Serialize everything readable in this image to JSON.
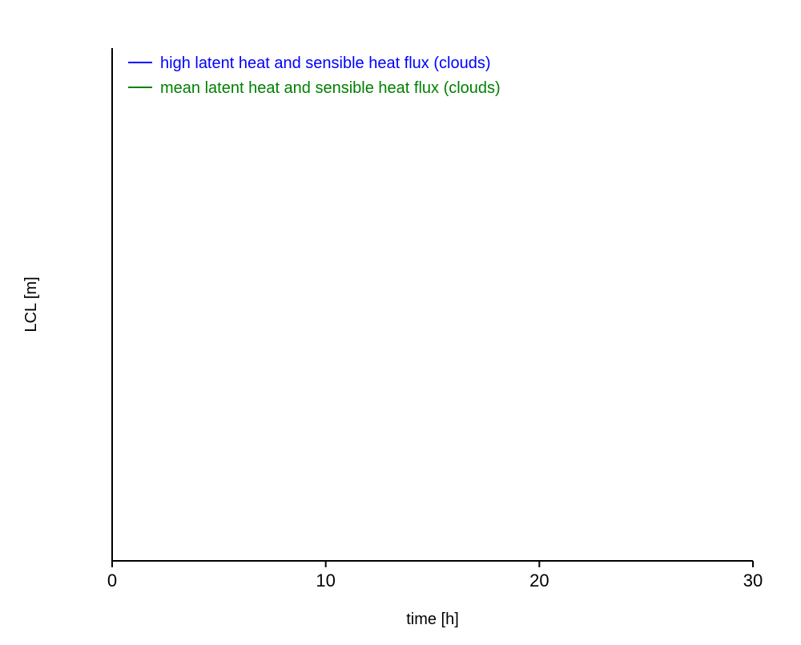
{
  "chart_data": {
    "type": "line",
    "title": "",
    "xlabel": "time [h]",
    "ylabel": "LCL [m]",
    "xlim": [
      0,
      30
    ],
    "xticks": [
      0,
      10,
      20,
      30
    ],
    "grid": false,
    "legend_position": "top-left",
    "series": [
      {
        "name": "high latent heat and sensible heat flux (clouds)",
        "color": "#0000ff",
        "x": [],
        "y": []
      },
      {
        "name": "mean latent heat and sensible heat flux (clouds)",
        "color": "#008000",
        "x": [],
        "y": []
      }
    ]
  }
}
